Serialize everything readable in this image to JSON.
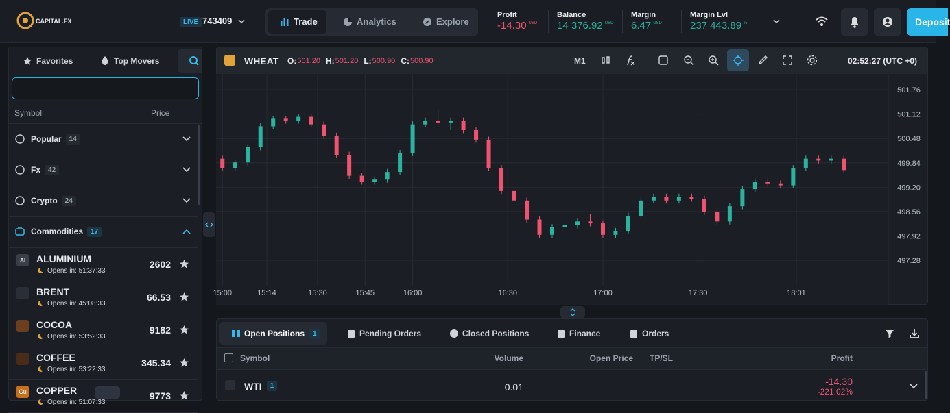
{
  "header": {
    "logo": "CAPITAL.FX",
    "account_type": "LIVE",
    "account": "743409",
    "tabs": [
      "Trade",
      "Analytics",
      "Explore"
    ],
    "stats": [
      {
        "label": "Profit",
        "value": "-14.30",
        "unit": "USD"
      },
      {
        "label": "Balance",
        "value": "14 376.92",
        "unit": "USD"
      },
      {
        "label": "Margin",
        "value": "6.47",
        "unit": "USD"
      },
      {
        "label": "Margin Lvl",
        "value": "237 443.89",
        "unit": "%"
      }
    ],
    "deposit": "Deposit"
  },
  "sidebar": {
    "tabs": [
      "Favorites",
      "Top Movers"
    ],
    "columns": [
      "Symbol",
      "Price"
    ],
    "groups": [
      {
        "name": "Popular",
        "count": "14"
      },
      {
        "name": "Fx",
        "count": "42"
      },
      {
        "name": "Crypto",
        "count": "24"
      },
      {
        "name": "Commodities",
        "count": "17"
      }
    ],
    "items": [
      {
        "symbol": "ALUMINIUM",
        "icon": "Al",
        "opens_in": "Opens in: 51:37:33",
        "price": "2602"
      },
      {
        "symbol": "BRENT",
        "opens_in": "Opens in: 45:08:33",
        "price": "66.53"
      },
      {
        "symbol": "COCOA",
        "opens_in": "Opens in: 53:52:33",
        "price": "9182"
      },
      {
        "symbol": "COFFEE",
        "opens_in": "Opens in: 53:22:33",
        "price": "345.34"
      },
      {
        "symbol": "COPPER",
        "icon": "Cu",
        "opens_in": "Opens in: 51:07:33",
        "price": "9773"
      }
    ]
  },
  "chart": {
    "symbol": "WHEAT",
    "ohlc": [
      {
        "label": "O:",
        "value": "501.20"
      },
      {
        "label": "H:",
        "value": "501.20"
      },
      {
        "label": "L:",
        "value": "500.90"
      },
      {
        "label": "C:",
        "value": "500.90"
      }
    ],
    "timeframe": "M1",
    "clock": "02:52:27 (UTC +0)",
    "type": "candlestick",
    "up_color": "#2bb3a0",
    "down_color": "#ef5370",
    "x": [
      900,
      904,
      908,
      912,
      916,
      920,
      924,
      928,
      932,
      936,
      940,
      944,
      948,
      952,
      956,
      960,
      964,
      968,
      972,
      976,
      980,
      984,
      988,
      992,
      996,
      1000,
      1004,
      1008,
      1012,
      1016,
      1020,
      1024,
      1028,
      1032,
      1036,
      1040,
      1044,
      1048,
      1052,
      1056,
      1060,
      1064,
      1068,
      1072,
      1076,
      1080,
      1084,
      1088,
      1092,
      1096
    ],
    "open": [
      499.95,
      499.7,
      499.85,
      500.25,
      500.8,
      501.0,
      500.95,
      501.05,
      500.85,
      500.55,
      500.05,
      499.5,
      499.35,
      499.4,
      499.6,
      500.1,
      500.85,
      500.95,
      500.9,
      500.95,
      500.7,
      500.45,
      499.7,
      499.1,
      498.85,
      498.35,
      497.95,
      498.15,
      498.2,
      498.3,
      498.25,
      497.95,
      498.05,
      498.45,
      498.85,
      498.95,
      498.85,
      498.95,
      498.9,
      498.55,
      498.3,
      498.7,
      499.15,
      499.35,
      499.3,
      499.25,
      499.7,
      499.95,
      499.9,
      499.95
    ],
    "high": [
      500.03,
      499.93,
      500.33,
      500.88,
      501.08,
      501.08,
      501.13,
      501.13,
      500.93,
      500.63,
      500.13,
      499.58,
      499.48,
      499.68,
      500.18,
      500.93,
      501.03,
      501.25,
      501.03,
      501.03,
      500.78,
      500.53,
      499.78,
      499.18,
      498.93,
      498.43,
      498.23,
      498.28,
      498.38,
      498.5,
      498.33,
      498.13,
      498.53,
      498.93,
      499.03,
      499.03,
      499.03,
      499.03,
      498.98,
      498.63,
      498.78,
      499.23,
      499.43,
      499.43,
      499.38,
      499.78,
      500.03,
      500.03,
      500.03,
      500.03
    ],
    "low": [
      499.62,
      499.62,
      499.77,
      500.17,
      500.72,
      500.87,
      500.87,
      500.77,
      500.47,
      499.97,
      499.42,
      499.27,
      499.27,
      499.32,
      499.52,
      500.02,
      500.77,
      500.82,
      500.7,
      500.62,
      500.37,
      499.62,
      499.02,
      498.77,
      498.27,
      497.87,
      497.87,
      498.07,
      498.12,
      498.17,
      497.87,
      497.87,
      497.97,
      498.37,
      498.77,
      498.77,
      498.77,
      498.82,
      498.47,
      498.22,
      498.22,
      498.62,
      499.07,
      499.22,
      499.17,
      499.17,
      499.62,
      499.82,
      499.82,
      499.57
    ],
    "close": [
      499.7,
      499.85,
      500.25,
      500.8,
      501.0,
      500.95,
      501.05,
      500.85,
      500.55,
      500.05,
      499.5,
      499.35,
      499.4,
      499.6,
      500.1,
      500.85,
      500.95,
      500.9,
      500.95,
      500.7,
      500.45,
      499.7,
      499.1,
      498.85,
      498.35,
      497.95,
      498.15,
      498.2,
      498.3,
      498.25,
      497.95,
      498.05,
      498.45,
      498.85,
      498.95,
      498.85,
      498.95,
      498.9,
      498.55,
      498.3,
      498.7,
      499.15,
      499.35,
      499.3,
      499.25,
      499.7,
      499.95,
      499.9,
      499.95,
      499.65
    ],
    "xlim": [
      898,
      1110
    ],
    "ylim": [
      496.74,
      502.14
    ],
    "yticks": [
      501.76,
      501.12,
      500.48,
      {
        "value": 499.84,
        "label": "499.84"
      },
      {
        "value": 499.2,
        "label": "499.20"
      },
      498.56,
      497.92,
      497.28
    ],
    "xticks": [
      {
        "value": 900,
        "label": "15:00"
      },
      {
        "value": 914,
        "label": "15:14"
      },
      {
        "value": 930,
        "label": "15:30"
      },
      {
        "value": 945,
        "label": "15:45"
      },
      {
        "value": 960,
        "label": "16:00"
      },
      {
        "value": 990,
        "label": "16:30"
      },
      {
        "value": 1020,
        "label": "17:00"
      },
      {
        "value": 1050,
        "label": "17:30"
      },
      {
        "value": 1081,
        "label": "18:01"
      }
    ],
    "grid": true
  },
  "positions": {
    "tabs": [
      {
        "label": "Open Positions",
        "count": "1"
      },
      {
        "label": "Pending Orders"
      },
      {
        "label": "Closed Positions"
      },
      {
        "label": "Finance"
      },
      {
        "label": "Orders"
      }
    ],
    "columns": [
      "Symbol",
      "Volume",
      "Open Price",
      "TP/SL",
      "Profit"
    ],
    "rows": [
      {
        "symbol": "WTI",
        "count": "1",
        "volume": "0.01",
        "profit": "-14.30",
        "profit_pct": "-221.02%"
      }
    ]
  }
}
